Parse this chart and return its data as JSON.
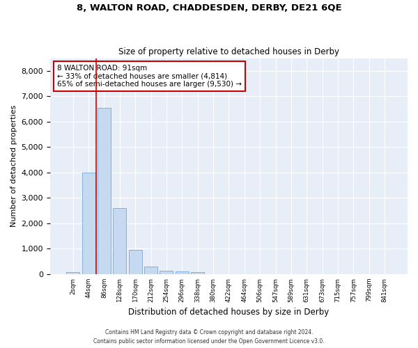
{
  "title_line1": "8, WALTON ROAD, CHADDESDEN, DERBY, DE21 6QE",
  "title_line2": "Size of property relative to detached houses in Derby",
  "xlabel": "Distribution of detached houses by size in Derby",
  "ylabel": "Number of detached properties",
  "bar_color": "#c5d9f0",
  "bar_edge_color": "#7ba7d4",
  "background_color": "#e8eef8",
  "grid_color": "#ffffff",
  "categories": [
    "2sqm",
    "44sqm",
    "86sqm",
    "128sqm",
    "170sqm",
    "212sqm",
    "254sqm",
    "296sqm",
    "338sqm",
    "380sqm",
    "422sqm",
    "464sqm",
    "506sqm",
    "547sqm",
    "589sqm",
    "631sqm",
    "673sqm",
    "715sqm",
    "757sqm",
    "799sqm",
    "841sqm"
  ],
  "values": [
    75,
    4000,
    6550,
    2600,
    950,
    310,
    130,
    100,
    80,
    0,
    0,
    0,
    0,
    0,
    0,
    0,
    0,
    0,
    0,
    0,
    0
  ],
  "ylim": [
    0,
    8500
  ],
  "yticks": [
    0,
    1000,
    2000,
    3000,
    4000,
    5000,
    6000,
    7000,
    8000
  ],
  "annotation_text": "8 WALTON ROAD: 91sqm\n← 33% of detached houses are smaller (4,814)\n65% of semi-detached houses are larger (9,530) →",
  "footer_line1": "Contains HM Land Registry data © Crown copyright and database right 2024.",
  "footer_line2": "Contains public sector information licensed under the Open Government Licence v3.0."
}
